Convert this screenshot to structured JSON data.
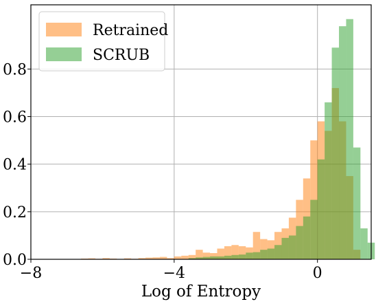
{
  "chart_data": {
    "type": "histogram",
    "xlabel": "Log of Entropy",
    "ylabel": "",
    "title": "",
    "xlim": [
      -8,
      1.5
    ],
    "ylim": [
      0,
      1.07
    ],
    "xticks": [
      -8,
      -4,
      0
    ],
    "xtick_labels": [
      "−8",
      "−4",
      "0"
    ],
    "yticks": [
      0,
      0.2,
      0.4,
      0.6,
      0.8
    ],
    "ytick_labels": [
      "0.0",
      "0.2",
      "0.4",
      "0.6",
      "0.8"
    ],
    "grid": true,
    "legend_position": "upper-left",
    "series": [
      {
        "name": "Retrained",
        "color": "#ff7f0e",
        "opacity": 0.5,
        "bins": [
          {
            "x0": -6.6,
            "x1": -6.4,
            "value": 0.003
          },
          {
            "x0": -6.4,
            "x1": -6.2,
            "value": 0.004
          },
          {
            "x0": -6.2,
            "x1": -6.0,
            "value": 0.002
          },
          {
            "x0": -6.0,
            "x1": -5.8,
            "value": 0.005
          },
          {
            "x0": -5.8,
            "x1": -5.6,
            "value": 0.003
          },
          {
            "x0": -5.4,
            "x1": -5.2,
            "value": 0.004
          },
          {
            "x0": -5.2,
            "x1": -5.0,
            "value": 0.002
          },
          {
            "x0": -5.0,
            "x1": -4.8,
            "value": 0.005
          },
          {
            "x0": -4.8,
            "x1": -4.6,
            "value": 0.007
          },
          {
            "x0": -4.6,
            "x1": -4.4,
            "value": 0.008
          },
          {
            "x0": -4.4,
            "x1": -4.2,
            "value": 0.01
          },
          {
            "x0": -4.2,
            "x1": -4.0,
            "value": 0.005
          },
          {
            "x0": -4.0,
            "x1": -3.8,
            "value": 0.012
          },
          {
            "x0": -3.8,
            "x1": -3.6,
            "value": 0.015
          },
          {
            "x0": -3.6,
            "x1": -3.4,
            "value": 0.018
          },
          {
            "x0": -3.4,
            "x1": -3.2,
            "value": 0.04
          },
          {
            "x0": -3.2,
            "x1": -3.0,
            "value": 0.028
          },
          {
            "x0": -3.0,
            "x1": -2.8,
            "value": 0.026
          },
          {
            "x0": -2.8,
            "x1": -2.6,
            "value": 0.045
          },
          {
            "x0": -2.6,
            "x1": -2.4,
            "value": 0.055
          },
          {
            "x0": -2.4,
            "x1": -2.2,
            "value": 0.06
          },
          {
            "x0": -2.2,
            "x1": -2.0,
            "value": 0.055
          },
          {
            "x0": -2.0,
            "x1": -1.8,
            "value": 0.05
          },
          {
            "x0": -1.8,
            "x1": -1.6,
            "value": 0.115
          },
          {
            "x0": -1.6,
            "x1": -1.4,
            "value": 0.085
          },
          {
            "x0": -1.4,
            "x1": -1.2,
            "value": 0.08
          },
          {
            "x0": -1.2,
            "x1": -1.0,
            "value": 0.115
          },
          {
            "x0": -1.0,
            "x1": -0.8,
            "value": 0.13
          },
          {
            "x0": -0.8,
            "x1": -0.6,
            "value": 0.175
          },
          {
            "x0": -0.6,
            "x1": -0.4,
            "value": 0.25
          },
          {
            "x0": -0.4,
            "x1": -0.2,
            "value": 0.34
          },
          {
            "x0": -0.2,
            "x1": 0.0,
            "value": 0.5
          },
          {
            "x0": 0.0,
            "x1": 0.2,
            "value": 0.58
          },
          {
            "x0": 0.2,
            "x1": 0.4,
            "value": 0.54
          },
          {
            "x0": 0.4,
            "x1": 0.6,
            "value": 0.72
          },
          {
            "x0": 0.6,
            "x1": 0.8,
            "value": 0.58
          },
          {
            "x0": 0.8,
            "x1": 1.0,
            "value": 0.35
          },
          {
            "x0": 1.0,
            "x1": 1.2,
            "value": 0.04
          }
        ]
      },
      {
        "name": "SCRUB",
        "color": "#2ca02c",
        "opacity": 0.5,
        "bins": [
          {
            "x0": -3.6,
            "x1": -3.4,
            "value": 0.005
          },
          {
            "x0": -3.4,
            "x1": -3.2,
            "value": 0.008
          },
          {
            "x0": -3.2,
            "x1": -3.0,
            "value": 0.01
          },
          {
            "x0": -3.0,
            "x1": -2.8,
            "value": 0.012
          },
          {
            "x0": -2.8,
            "x1": -2.6,
            "value": 0.012
          },
          {
            "x0": -2.6,
            "x1": -2.4,
            "value": 0.015
          },
          {
            "x0": -2.4,
            "x1": -2.2,
            "value": 0.018
          },
          {
            "x0": -2.2,
            "x1": -2.0,
            "value": 0.02
          },
          {
            "x0": -2.0,
            "x1": -1.8,
            "value": 0.028
          },
          {
            "x0": -1.8,
            "x1": -1.6,
            "value": 0.03
          },
          {
            "x0": -1.6,
            "x1": -1.4,
            "value": 0.04
          },
          {
            "x0": -1.4,
            "x1": -1.2,
            "value": 0.045
          },
          {
            "x0": -1.2,
            "x1": -1.0,
            "value": 0.06
          },
          {
            "x0": -1.0,
            "x1": -0.8,
            "value": 0.09
          },
          {
            "x0": -0.8,
            "x1": -0.6,
            "value": 0.1
          },
          {
            "x0": -0.6,
            "x1": -0.4,
            "value": 0.14
          },
          {
            "x0": -0.4,
            "x1": -0.2,
            "value": 0.18
          },
          {
            "x0": -0.2,
            "x1": 0.0,
            "value": 0.25
          },
          {
            "x0": 0.0,
            "x1": 0.2,
            "value": 0.42
          },
          {
            "x0": 0.2,
            "x1": 0.4,
            "value": 0.66
          },
          {
            "x0": 0.4,
            "x1": 0.6,
            "value": 0.89
          },
          {
            "x0": 0.6,
            "x1": 0.8,
            "value": 0.98
          },
          {
            "x0": 0.8,
            "x1": 1.0,
            "value": 1.01
          },
          {
            "x0": 1.0,
            "x1": 1.2,
            "value": 0.47
          },
          {
            "x0": 1.2,
            "x1": 1.4,
            "value": 0.13
          },
          {
            "x0": 1.4,
            "x1": 1.6,
            "value": 0.07
          }
        ]
      }
    ]
  }
}
